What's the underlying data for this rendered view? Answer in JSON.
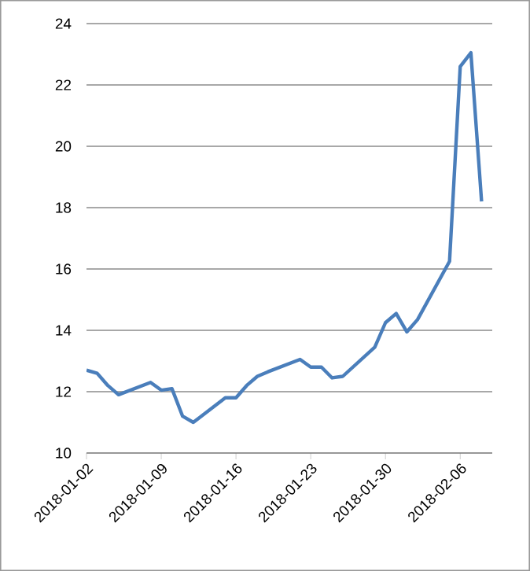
{
  "chart_data": {
    "type": "line",
    "x": [
      "2018-01-02",
      "2018-01-03",
      "2018-01-04",
      "2018-01-05",
      "2018-01-08",
      "2018-01-09",
      "2018-01-10",
      "2018-01-11",
      "2018-01-12",
      "2018-01-15",
      "2018-01-16",
      "2018-01-17",
      "2018-01-18",
      "2018-01-19",
      "2018-01-22",
      "2018-01-23",
      "2018-01-24",
      "2018-01-25",
      "2018-01-26",
      "2018-01-29",
      "2018-01-30",
      "2018-01-31",
      "2018-02-01",
      "2018-02-02",
      "2018-02-05",
      "2018-02-06",
      "2018-02-07",
      "2018-02-08"
    ],
    "series": [
      {
        "color": "#4a7ebb",
        "values": [
          12.7,
          12.6,
          12.2,
          11.9,
          12.3,
          12.05,
          12.1,
          11.2,
          11.0,
          11.8,
          11.8,
          12.2,
          12.5,
          12.65,
          13.05,
          12.8,
          12.8,
          12.45,
          12.5,
          13.45,
          14.25,
          14.55,
          13.95,
          14.35,
          16.25,
          22.6,
          23.05,
          18.2
        ]
      }
    ],
    "xlim": [
      "2018-01-02",
      "2018-02-09"
    ],
    "xticks": [
      {
        "value": "2018-01-02",
        "label": "2018-01-02"
      },
      {
        "value": "2018-01-09",
        "label": "2018-01-09"
      },
      {
        "value": "2018-01-16",
        "label": "2018-01-16"
      },
      {
        "value": "2018-01-23",
        "label": "2018-01-23"
      },
      {
        "value": "2018-01-30",
        "label": "2018-01-30"
      },
      {
        "value": "2018-02-06",
        "label": "2018-02-06"
      }
    ],
    "ylim": [
      10,
      24
    ],
    "yticks": [
      10,
      12,
      14,
      16,
      18,
      20,
      22,
      24
    ],
    "grid": "y",
    "marker": "none",
    "line_style": "solid"
  }
}
